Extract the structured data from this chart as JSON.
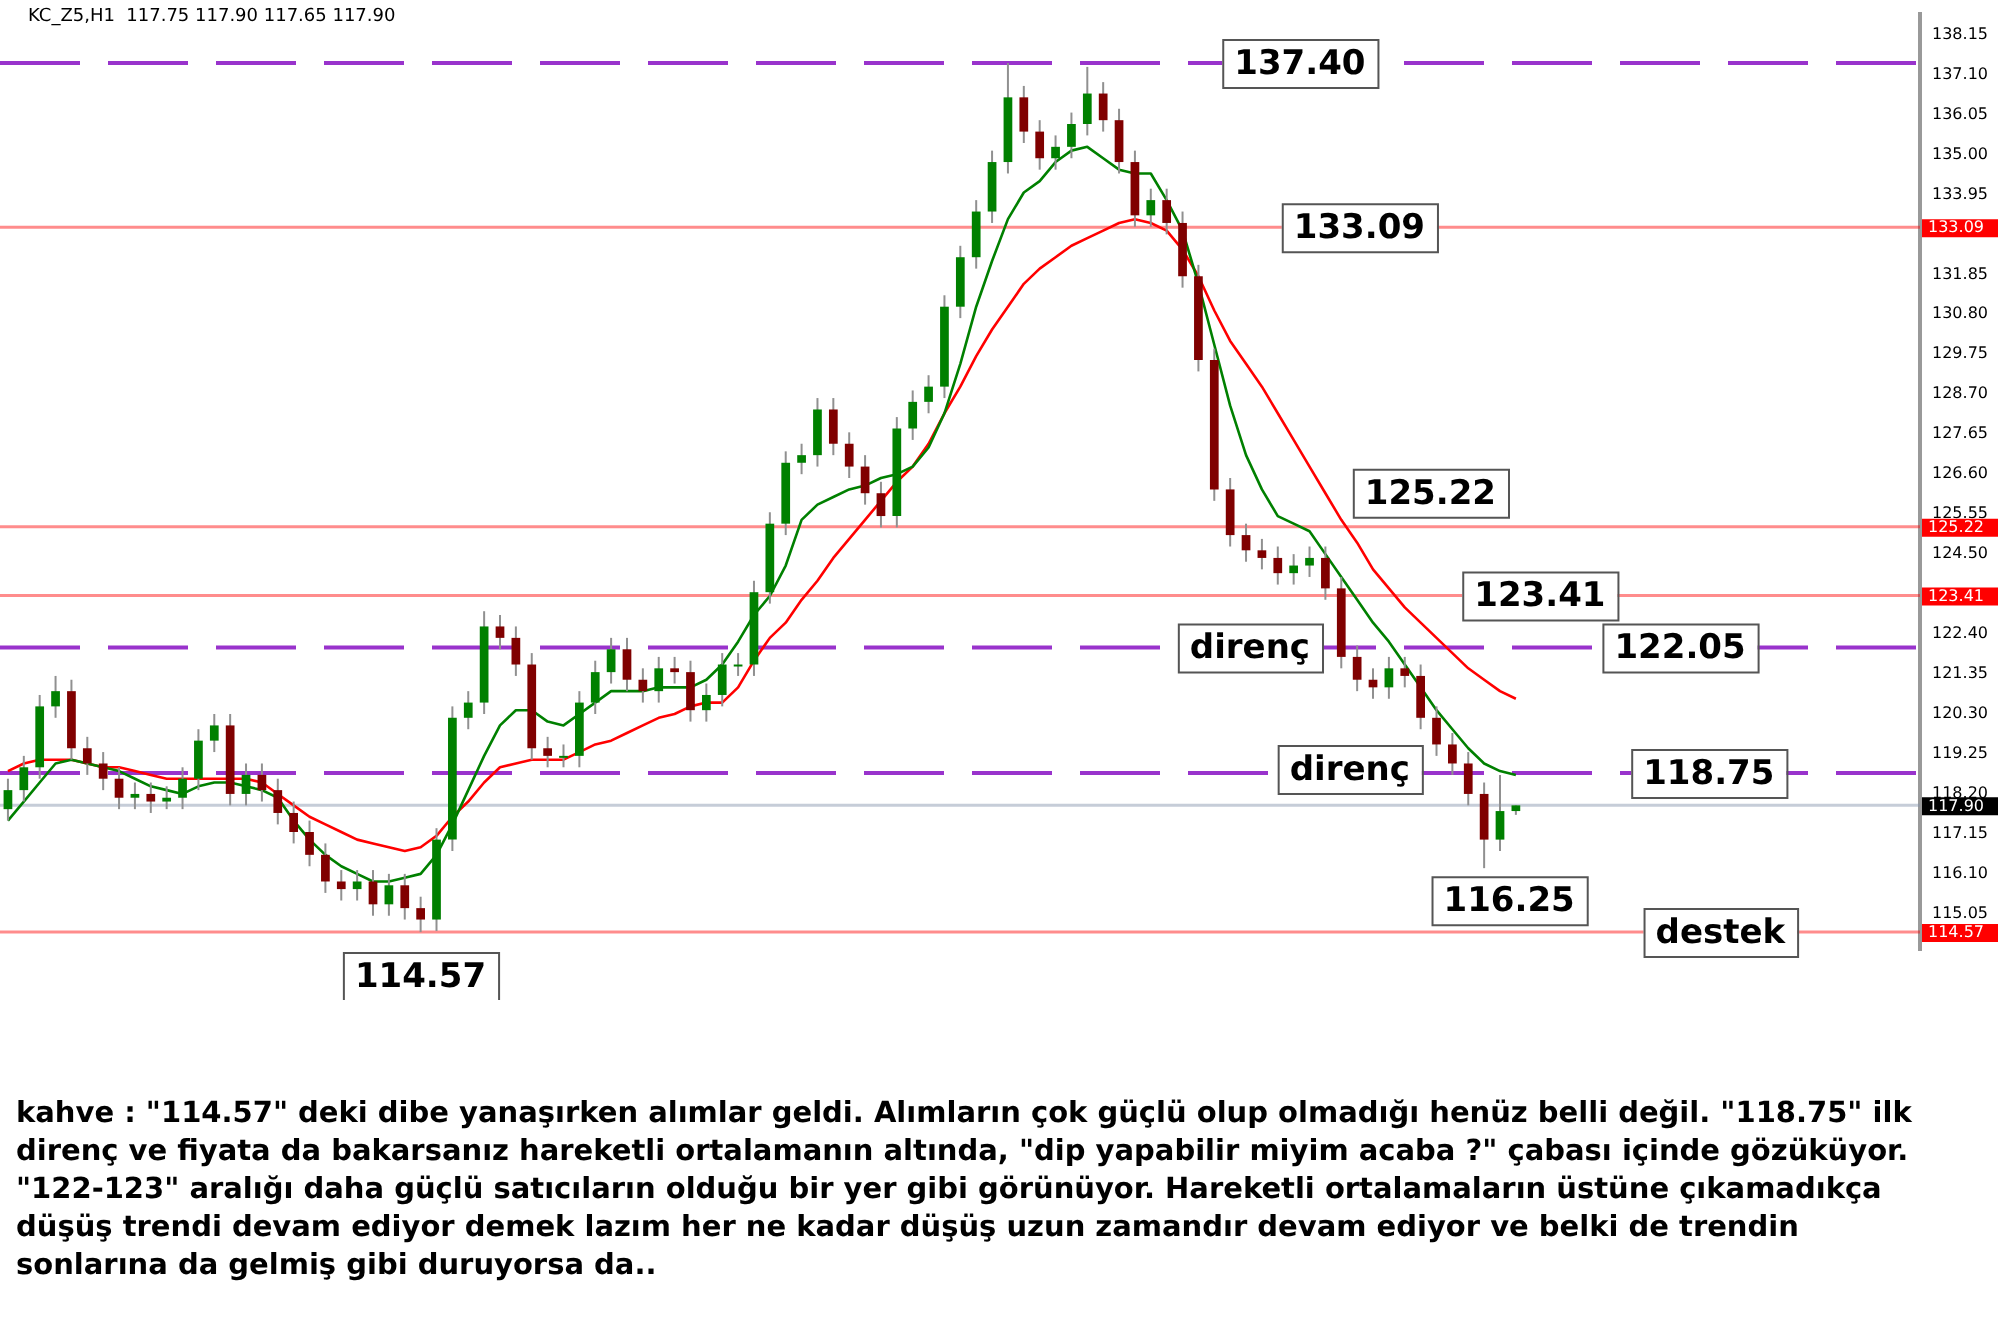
{
  "chart_data": {
    "type": "candlestick",
    "title": "KC_Z5,H1  117.75 117.90 117.65 117.90",
    "categories": [
      null,
      null,
      null,
      null,
      null,
      null,
      null,
      null,
      null,
      null,
      null,
      null,
      null,
      null,
      null,
      null,
      null,
      null,
      null,
      null,
      null,
      null,
      null,
      null,
      null,
      null,
      null,
      null,
      null,
      null,
      null,
      null,
      null,
      null,
      null,
      null,
      null,
      null,
      null,
      null,
      null,
      null,
      null,
      null,
      null,
      null,
      null,
      null,
      null,
      null,
      null,
      null,
      null,
      null,
      null,
      null,
      null,
      null,
      null,
      null,
      null,
      null,
      null,
      null,
      null,
      null,
      null,
      null,
      null,
      null,
      null,
      null,
      null,
      null,
      null,
      null,
      null,
      null,
      null,
      null,
      null,
      null,
      null,
      null,
      null,
      null,
      null,
      null,
      null,
      null,
      null,
      null,
      null,
      null,
      null,
      null
    ],
    "ohlc": [
      [
        117.8,
        118.6,
        117.5,
        118.3
      ],
      [
        118.3,
        119.2,
        118.0,
        118.9
      ],
      [
        118.9,
        120.8,
        118.6,
        120.5
      ],
      [
        120.5,
        121.3,
        120.2,
        120.9
      ],
      [
        120.9,
        121.2,
        119.1,
        119.4
      ],
      [
        119.4,
        119.7,
        118.7,
        119.0
      ],
      [
        119.0,
        119.3,
        118.3,
        118.6
      ],
      [
        118.6,
        118.9,
        117.8,
        118.1
      ],
      [
        118.1,
        118.5,
        117.8,
        118.2
      ],
      [
        118.2,
        118.5,
        117.7,
        118.0
      ],
      [
        118.0,
        118.4,
        117.8,
        118.1
      ],
      [
        118.1,
        118.9,
        117.8,
        118.6
      ],
      [
        118.6,
        119.9,
        118.3,
        119.6
      ],
      [
        119.6,
        120.3,
        119.3,
        120.0
      ],
      [
        120.0,
        120.3,
        117.9,
        118.2
      ],
      [
        118.2,
        119.0,
        117.9,
        118.7
      ],
      [
        118.7,
        119.0,
        118.0,
        118.3
      ],
      [
        118.3,
        118.6,
        117.4,
        117.7
      ],
      [
        117.7,
        118.0,
        116.9,
        117.2
      ],
      [
        117.2,
        117.5,
        116.3,
        116.6
      ],
      [
        116.6,
        116.9,
        115.6,
        115.9
      ],
      [
        115.9,
        116.2,
        115.4,
        115.7
      ],
      [
        115.7,
        116.2,
        115.4,
        115.9
      ],
      [
        115.9,
        116.2,
        115.0,
        115.3
      ],
      [
        115.3,
        116.1,
        115.0,
        115.8
      ],
      [
        115.8,
        116.1,
        114.9,
        115.2
      ],
      [
        115.2,
        115.5,
        114.57,
        114.9
      ],
      [
        114.9,
        117.3,
        114.6,
        117.0
      ],
      [
        117.0,
        120.5,
        116.7,
        120.2
      ],
      [
        120.2,
        120.9,
        119.9,
        120.6
      ],
      [
        120.6,
        123.0,
        120.3,
        122.6
      ],
      [
        122.6,
        122.9,
        122.0,
        122.3
      ],
      [
        122.3,
        122.6,
        121.3,
        121.6
      ],
      [
        121.6,
        121.9,
        119.1,
        119.4
      ],
      [
        119.4,
        119.7,
        118.9,
        119.2
      ],
      [
        119.2,
        119.5,
        118.9,
        119.2
      ],
      [
        119.2,
        120.9,
        118.9,
        120.6
      ],
      [
        120.6,
        121.7,
        120.3,
        121.4
      ],
      [
        121.4,
        122.3,
        121.1,
        122.0
      ],
      [
        122.0,
        122.3,
        120.9,
        121.2
      ],
      [
        121.2,
        121.5,
        120.6,
        120.9
      ],
      [
        120.9,
        121.8,
        120.6,
        121.5
      ],
      [
        121.5,
        121.8,
        121.1,
        121.4
      ],
      [
        121.4,
        121.7,
        120.1,
        120.4
      ],
      [
        120.4,
        121.1,
        120.1,
        120.8
      ],
      [
        120.8,
        121.9,
        120.5,
        121.6
      ],
      [
        121.6,
        121.9,
        121.3,
        121.6
      ],
      [
        121.6,
        123.8,
        121.3,
        123.5
      ],
      [
        123.5,
        125.6,
        123.2,
        125.3
      ],
      [
        125.3,
        127.2,
        125.0,
        126.9
      ],
      [
        126.9,
        127.4,
        126.6,
        127.1
      ],
      [
        127.1,
        128.6,
        126.8,
        128.3
      ],
      [
        128.3,
        128.6,
        127.1,
        127.4
      ],
      [
        127.4,
        127.7,
        126.5,
        126.8
      ],
      [
        126.8,
        127.1,
        125.8,
        126.1
      ],
      [
        126.1,
        126.4,
        125.2,
        125.5
      ],
      [
        125.5,
        128.1,
        125.2,
        127.8
      ],
      [
        127.8,
        128.8,
        127.5,
        128.5
      ],
      [
        128.5,
        129.2,
        128.2,
        128.9
      ],
      [
        128.9,
        131.3,
        128.6,
        131.0
      ],
      [
        131.0,
        132.6,
        130.7,
        132.3
      ],
      [
        132.3,
        133.8,
        132.0,
        133.5
      ],
      [
        133.5,
        135.1,
        133.2,
        134.8
      ],
      [
        134.8,
        137.4,
        134.5,
        136.5
      ],
      [
        136.5,
        136.8,
        135.3,
        135.6
      ],
      [
        135.6,
        135.9,
        134.6,
        134.9
      ],
      [
        134.9,
        135.5,
        134.6,
        135.2
      ],
      [
        135.2,
        136.1,
        134.9,
        135.8
      ],
      [
        135.8,
        137.3,
        135.5,
        136.6
      ],
      [
        136.6,
        136.9,
        135.6,
        135.9
      ],
      [
        135.9,
        136.2,
        134.5,
        134.8
      ],
      [
        134.8,
        135.1,
        133.1,
        133.4
      ],
      [
        133.4,
        134.1,
        133.1,
        133.8
      ],
      [
        133.8,
        134.1,
        132.9,
        133.2
      ],
      [
        133.2,
        133.5,
        131.5,
        131.8
      ],
      [
        131.8,
        132.1,
        129.3,
        129.6
      ],
      [
        129.6,
        129.9,
        125.9,
        126.2
      ],
      [
        126.2,
        126.5,
        124.7,
        125.0
      ],
      [
        125.0,
        125.3,
        124.3,
        124.6
      ],
      [
        124.6,
        124.9,
        124.1,
        124.4
      ],
      [
        124.4,
        124.7,
        123.7,
        124.0
      ],
      [
        124.0,
        124.5,
        123.7,
        124.2
      ],
      [
        124.2,
        124.7,
        123.9,
        124.4
      ],
      [
        124.4,
        124.7,
        123.3,
        123.6
      ],
      [
        123.6,
        123.9,
        121.5,
        121.8
      ],
      [
        121.8,
        122.1,
        120.9,
        121.2
      ],
      [
        121.2,
        121.5,
        120.7,
        121.0
      ],
      [
        121.0,
        121.8,
        120.7,
        121.5
      ],
      [
        121.5,
        121.8,
        121.0,
        121.3
      ],
      [
        121.3,
        121.6,
        119.9,
        120.2
      ],
      [
        120.2,
        120.5,
        119.2,
        119.5
      ],
      [
        119.5,
        119.8,
        118.7,
        119.0
      ],
      [
        119.0,
        119.3,
        117.9,
        118.2
      ],
      [
        118.2,
        118.5,
        116.25,
        117.0
      ],
      [
        117.0,
        118.7,
        116.7,
        117.75
      ],
      [
        117.75,
        117.9,
        117.65,
        117.9
      ]
    ],
    "series": [
      {
        "type": "line",
        "color": "#008000",
        "values": [
          117.5,
          118.0,
          118.5,
          119.0,
          119.1,
          119.0,
          118.9,
          118.8,
          118.6,
          118.4,
          118.3,
          118.2,
          118.4,
          118.5,
          118.5,
          118.4,
          118.3,
          118.1,
          117.5,
          117.0,
          116.6,
          116.3,
          116.1,
          115.9,
          115.9,
          116.0,
          116.1,
          116.6,
          117.4,
          118.3,
          119.2,
          120.0,
          120.4,
          120.4,
          120.1,
          120.0,
          120.3,
          120.6,
          120.9,
          120.9,
          120.9,
          121.0,
          121.0,
          121.0,
          121.2,
          121.6,
          122.2,
          122.9,
          123.4,
          124.2,
          125.4,
          125.8,
          126.0,
          126.2,
          126.3,
          126.5,
          126.6,
          126.8,
          127.3,
          128.2,
          129.5,
          131.0,
          132.2,
          133.3,
          134.0,
          134.3,
          134.8,
          135.1,
          135.2,
          134.9,
          134.6,
          134.5,
          134.5,
          133.8,
          133.0,
          131.6,
          130.0,
          128.4,
          127.1,
          126.2,
          125.5,
          125.3,
          125.1,
          124.5,
          123.9,
          123.3,
          122.7,
          122.2,
          121.6,
          121.0,
          120.4,
          119.9,
          119.4,
          119.0,
          118.8,
          118.7
        ]
      },
      {
        "type": "line",
        "color": "#ff0000",
        "values": [
          118.8,
          119.0,
          119.1,
          119.1,
          119.1,
          119.0,
          118.9,
          118.9,
          118.8,
          118.7,
          118.6,
          118.6,
          118.6,
          118.6,
          118.6,
          118.6,
          118.5,
          118.2,
          117.9,
          117.6,
          117.4,
          117.2,
          117.0,
          116.9,
          116.8,
          116.7,
          116.8,
          117.1,
          117.6,
          118.0,
          118.5,
          118.9,
          119.0,
          119.1,
          119.1,
          119.1,
          119.3,
          119.5,
          119.6,
          119.8,
          120.0,
          120.2,
          120.3,
          120.5,
          120.6,
          120.6,
          121.0,
          121.7,
          122.3,
          122.7,
          123.3,
          123.8,
          124.4,
          124.9,
          125.4,
          125.9,
          126.4,
          126.8,
          127.4,
          128.2,
          128.9,
          129.7,
          130.4,
          131.0,
          131.6,
          132.0,
          132.3,
          132.6,
          132.8,
          133.0,
          133.2,
          133.3,
          133.2,
          133.0,
          132.5,
          131.8,
          130.9,
          130.1,
          129.5,
          128.9,
          128.2,
          127.5,
          126.8,
          126.1,
          125.4,
          124.8,
          124.1,
          123.6,
          123.1,
          122.7,
          122.3,
          121.9,
          121.5,
          121.2,
          120.9,
          120.7
        ]
      }
    ],
    "ylim": [
      114.1,
      138.7
    ],
    "yticks": [
      138.15,
      {
        "value": 137.1,
        "label": "137.10"
      },
      136.05,
      {
        "value": 135,
        "label": "135.00"
      },
      133.95,
      131.85,
      {
        "value": 130.8,
        "label": "130.80"
      },
      129.75,
      {
        "value": 128.7,
        "label": "128.70"
      },
      127.65,
      {
        "value": 126.6,
        "label": "126.60"
      },
      125.55,
      {
        "value": 124.5,
        "label": "124.50"
      },
      {
        "value": 122.4,
        "label": "122.40"
      },
      121.35,
      {
        "value": 120.3,
        "label": "120.30"
      },
      119.25,
      {
        "value": 118.2,
        "label": "118.20"
      },
      117.15,
      {
        "value": 116.1,
        "label": "116.10"
      },
      115.05
    ],
    "tick_labels": "y",
    "grid": false,
    "legend": false,
    "ref_lines": [
      {
        "axis": "y",
        "value": 137.4,
        "label": "137.40",
        "color": "#9933cc",
        "line_style": "dashed"
      },
      {
        "axis": "y",
        "value": 133.09,
        "label": "133.09",
        "color": "#ff0000",
        "line_style": "solid"
      },
      {
        "axis": "y",
        "value": 125.22,
        "label": "125.22",
        "color": "#ff0000",
        "line_style": "solid"
      },
      {
        "axis": "y",
        "value": 123.41,
        "label": "123.41",
        "color": "#ff0000",
        "line_style": "solid"
      },
      {
        "axis": "y",
        "value": 122.05,
        "label": "122.05",
        "color": "#9933cc",
        "line_style": "dashed"
      },
      {
        "axis": "y",
        "value": 118.75,
        "label": "118.75",
        "color": "#9933cc",
        "line_style": "dashed"
      },
      {
        "axis": "y",
        "value": 117.9,
        "label": null,
        "color": "#8090a8",
        "line_style": "solid"
      },
      {
        "axis": "y",
        "value": 114.57,
        "label": "114.57",
        "color": "#ff0000",
        "line_style": "solid"
      }
    ],
    "annotations": [
      {
        "text": "direnç",
        "y": 122.05
      },
      {
        "text": "direnç",
        "y": 118.75
      },
      {
        "text": "destek",
        "y": 114.57
      },
      "116.25",
      "133.09",
      "125.22",
      "123.41",
      "117.90",
      "114.57",
      "kahve : \"114.57\" deki dibe yanaşırken alımlar geldi. Alımların çok güçlü olup olmadığı henüz belli değil. \"118.75\" ilk direnç ve fiyata da bakarsanız hareketli ortalamanın altında, \"dip yapabilir miyim acaba ?\" çabası içinde gözüküyor. \"122-123\" aralığı daha güçlü satıcıların olduğu bir yer gibi görünüyor. Hareketli ortalamaların üstüne çıkamadıkça düşüş trendi devam ediyor demek lazım her ne kadar düşüş uzun zamandır devam ediyor ve belki de trendin sonlarına da gelmiş gibi duruyorsa da.."
    ]
  }
}
